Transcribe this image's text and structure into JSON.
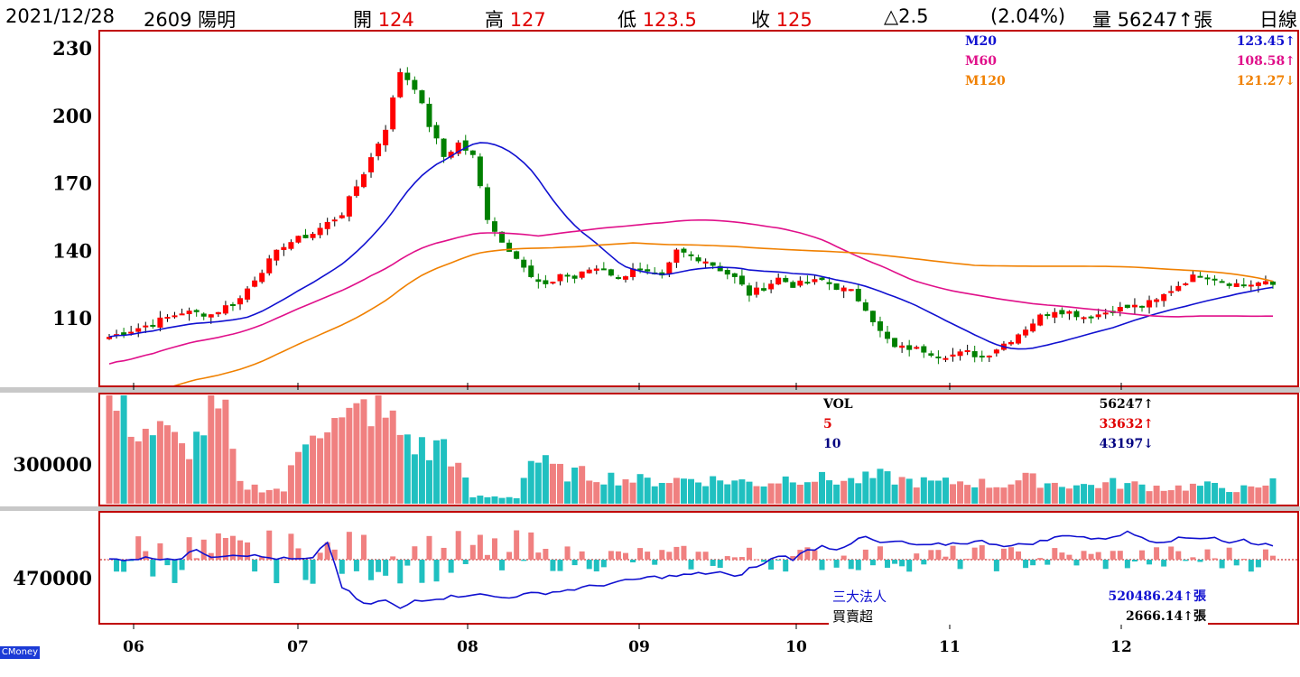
{
  "header": {
    "date": "2021/12/28",
    "stock": "2609 陽明",
    "open_label": "開",
    "open": "124",
    "high_label": "高",
    "high": "127",
    "low_label": "低",
    "low": "123.5",
    "close_label": "收",
    "close": "125",
    "change": "△2.5",
    "change_pct": "(2.04%)",
    "volume_label": "量",
    "volume": "56247↑張",
    "period": "日線"
  },
  "ma_legend": [
    {
      "name": "M20",
      "value": "123.45↑",
      "color": "#1010d0"
    },
    {
      "name": "M60",
      "value": "108.58↑",
      "color": "#e0108a"
    },
    {
      "name": "M120",
      "value": "121.27↓",
      "color": "#f08000"
    }
  ],
  "vol_legend": [
    {
      "name": "VOL",
      "value": "56247↑",
      "color": "#000000"
    },
    {
      "name": "5",
      "value": "33632↑",
      "color": "#e00000"
    },
    {
      "name": "10",
      "value": "43197↓",
      "color": "#000080"
    }
  ],
  "inst_legend": [
    {
      "name": "三大法人",
      "value": "520486.24↑張",
      "color": "#1010d0"
    },
    {
      "name": "買賣超",
      "value": "2666.14↑張",
      "color": "#000000"
    }
  ],
  "axes": {
    "price_ticks": [
      "230",
      "200",
      "170",
      "140",
      "110"
    ],
    "volume_tick": "300000",
    "inst_tick": "470000",
    "months": [
      "06",
      "07",
      "08",
      "09",
      "10",
      "11",
      "12"
    ]
  },
  "brand": "CMoney",
  "colors": {
    "up": "#ff0000",
    "down": "#008000",
    "vol_up": "#f08080",
    "vol_down": "#20c0c0",
    "frame": "#c00000"
  },
  "chart_data": {
    "type": "candlestick",
    "price_axis": {
      "ticks": [
        230,
        200,
        170,
        140,
        110
      ],
      "range": [
        80,
        238
      ]
    },
    "keypoints_close": [
      [
        0,
        102
      ],
      [
        5,
        107
      ],
      [
        10,
        113
      ],
      [
        14,
        112
      ],
      [
        18,
        119
      ],
      [
        20,
        128
      ],
      [
        24,
        143
      ],
      [
        28,
        148
      ],
      [
        32,
        157
      ],
      [
        35,
        175
      ],
      [
        38,
        195
      ],
      [
        40,
        220
      ],
      [
        42,
        213
      ],
      [
        44,
        196
      ],
      [
        46,
        182
      ],
      [
        48,
        188
      ],
      [
        50,
        182
      ],
      [
        52,
        155
      ],
      [
        54,
        144
      ],
      [
        56,
        138
      ],
      [
        58,
        128
      ],
      [
        60,
        124
      ],
      [
        62,
        130
      ],
      [
        64,
        128
      ],
      [
        66,
        132
      ],
      [
        68,
        133
      ],
      [
        70,
        127
      ],
      [
        72,
        133
      ],
      [
        74,
        130
      ],
      [
        76,
        128
      ],
      [
        78,
        140
      ],
      [
        80,
        138
      ],
      [
        82,
        136
      ],
      [
        84,
        132
      ],
      [
        86,
        128
      ],
      [
        88,
        121
      ],
      [
        90,
        124
      ],
      [
        92,
        128
      ],
      [
        94,
        125
      ],
      [
        96,
        126
      ],
      [
        98,
        127
      ],
      [
        100,
        124
      ],
      [
        102,
        122
      ],
      [
        104,
        115
      ],
      [
        106,
        104
      ],
      [
        108,
        97
      ],
      [
        110,
        97
      ],
      [
        112,
        96
      ],
      [
        114,
        94
      ],
      [
        116,
        94
      ],
      [
        118,
        95
      ],
      [
        120,
        93
      ],
      [
        122,
        97
      ],
      [
        124,
        101
      ],
      [
        126,
        106
      ],
      [
        128,
        111
      ],
      [
        130,
        114
      ],
      [
        132,
        113
      ],
      [
        134,
        111
      ],
      [
        136,
        112
      ],
      [
        138,
        114
      ],
      [
        140,
        115
      ],
      [
        142,
        116
      ],
      [
        144,
        118
      ],
      [
        146,
        123
      ],
      [
        148,
        127
      ],
      [
        150,
        130
      ],
      [
        152,
        128
      ],
      [
        154,
        126
      ],
      [
        156,
        125
      ],
      [
        158,
        126
      ],
      [
        160,
        125
      ]
    ],
    "ma_series": [
      {
        "name": "M20",
        "last": 123.45
      },
      {
        "name": "M60",
        "last": 108.58
      },
      {
        "name": "M120",
        "last": 121.27
      }
    ],
    "volume_keypoints": [
      [
        0,
        230000
      ],
      [
        4,
        170000
      ],
      [
        8,
        150000
      ],
      [
        10,
        120000
      ],
      [
        12,
        140000
      ],
      [
        14,
        210000
      ],
      [
        16,
        180000
      ],
      [
        18,
        40000
      ],
      [
        24,
        30000
      ],
      [
        28,
        190000
      ],
      [
        32,
        170000
      ],
      [
        36,
        220000
      ],
      [
        40,
        160000
      ],
      [
        44,
        110000
      ],
      [
        46,
        140000
      ],
      [
        50,
        15000
      ],
      [
        56,
        15000
      ],
      [
        58,
        100000
      ],
      [
        62,
        70000
      ],
      [
        68,
        60000
      ],
      [
        74,
        50000
      ],
      [
        80,
        55000
      ],
      [
        86,
        50000
      ],
      [
        90,
        45000
      ],
      [
        94,
        60000
      ],
      [
        98,
        55000
      ],
      [
        102,
        50000
      ],
      [
        106,
        60000
      ],
      [
        110,
        50000
      ],
      [
        114,
        45000
      ],
      [
        118,
        50000
      ],
      [
        122,
        40000
      ],
      [
        126,
        55000
      ],
      [
        130,
        45000
      ],
      [
        134,
        40000
      ],
      [
        138,
        45000
      ],
      [
        142,
        40000
      ],
      [
        146,
        35000
      ],
      [
        150,
        40000
      ],
      [
        154,
        35000
      ],
      [
        158,
        30000
      ],
      [
        160,
        56247
      ]
    ],
    "institutional_line_keypoints": [
      [
        0,
        0
      ],
      [
        6,
        2
      ],
      [
        10,
        1
      ],
      [
        12,
        12
      ],
      [
        14,
        4
      ],
      [
        18,
        6
      ],
      [
        22,
        2
      ],
      [
        26,
        0
      ],
      [
        28,
        1
      ],
      [
        30,
        20
      ],
      [
        32,
        -30
      ],
      [
        35,
        -50
      ],
      [
        38,
        -45
      ],
      [
        40,
        -55
      ],
      [
        42,
        -45
      ],
      [
        46,
        -42
      ],
      [
        50,
        -38
      ],
      [
        54,
        -42
      ],
      [
        58,
        -38
      ],
      [
        62,
        -35
      ],
      [
        66,
        -30
      ],
      [
        70,
        -25
      ],
      [
        74,
        -20
      ],
      [
        78,
        -18
      ],
      [
        82,
        -15
      ],
      [
        84,
        -14
      ],
      [
        86,
        -20
      ],
      [
        88,
        -10
      ],
      [
        90,
        -5
      ],
      [
        92,
        5
      ],
      [
        94,
        1
      ],
      [
        96,
        10
      ],
      [
        98,
        15
      ],
      [
        100,
        12
      ],
      [
        104,
        25
      ],
      [
        106,
        18
      ],
      [
        108,
        20
      ],
      [
        112,
        15
      ],
      [
        116,
        18
      ],
      [
        120,
        20
      ],
      [
        124,
        15
      ],
      [
        128,
        20
      ],
      [
        132,
        28
      ],
      [
        136,
        22
      ],
      [
        140,
        30
      ],
      [
        144,
        20
      ],
      [
        148,
        24
      ],
      [
        152,
        25
      ],
      [
        154,
        18
      ],
      [
        156,
        22
      ],
      [
        158,
        17
      ],
      [
        160,
        17
      ]
    ],
    "ylim": [
      80,
      238
    ]
  }
}
